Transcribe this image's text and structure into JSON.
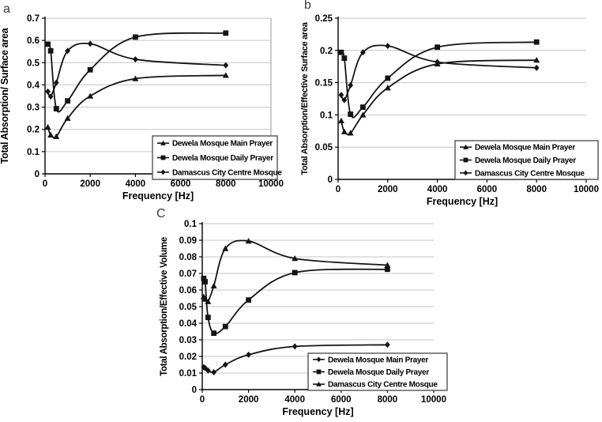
{
  "figure": {
    "background": "#ffffff",
    "panel_labels": {
      "a": "a",
      "b": "b",
      "c": "C"
    },
    "line_color": "#141414",
    "gridline_color": "#c6c6c6"
  },
  "chart_data": [
    {
      "panel": "a",
      "type": "line",
      "title": "",
      "xlabel": "Frequency [Hz]",
      "ylabel": "Total Absorption/ Surface area",
      "xlim": [
        0,
        10000
      ],
      "ylim": [
        0,
        0.7
      ],
      "xticks": [
        "0",
        "2000",
        "4000",
        "6000",
        "8000",
        "10000"
      ],
      "yticks": [
        "0",
        "0.1",
        "0.2",
        "0.3",
        "0.4",
        "0.5",
        "0.6",
        "0.7"
      ],
      "grid": "horizontal",
      "legend_position": "lower-right-inside",
      "series": [
        {
          "name": "Dewela Mosque Main Prayer",
          "marker": "triangle",
          "x": [
            125,
            250,
            500,
            1000,
            2000,
            4000,
            8000
          ],
          "values": [
            0.21,
            0.175,
            0.168,
            0.25,
            0.35,
            0.428,
            0.443
          ]
        },
        {
          "name": "Dewela Mosque Daily Prayer",
          "marker": "square",
          "x": [
            125,
            250,
            500,
            1000,
            2000,
            4000,
            8000
          ],
          "values": [
            0.583,
            0.553,
            0.293,
            0.328,
            0.468,
            0.615,
            0.633
          ]
        },
        {
          "name": "Damascus City Centre Mosque",
          "marker": "diamond",
          "x": [
            125,
            250,
            500,
            1000,
            2000,
            4000,
            8000
          ],
          "values": [
            0.37,
            0.348,
            0.41,
            0.553,
            0.585,
            0.515,
            0.488
          ]
        }
      ]
    },
    {
      "panel": "b",
      "type": "line",
      "title": "",
      "xlabel": "Frequency [Hz]",
      "ylabel": "Total Absorption/Effective Surface area",
      "xlim": [
        0,
        10000
      ],
      "ylim": [
        0,
        0.25
      ],
      "xticks": [
        "0",
        "2000",
        "4000",
        "6000",
        "8000",
        "10000"
      ],
      "yticks": [
        "0",
        "0.05",
        "0.1",
        "0.15",
        "0.2",
        "0.25"
      ],
      "grid": "horizontal",
      "legend_position": "lower-right-inside",
      "series": [
        {
          "name": "Dewela Mosque Main Prayer",
          "marker": "triangle",
          "x": [
            125,
            250,
            500,
            1000,
            2000,
            4000,
            8000
          ],
          "values": [
            0.091,
            0.074,
            0.072,
            0.1,
            0.142,
            0.179,
            0.185
          ]
        },
        {
          "name": "Dewela Mosque Daily Prayer",
          "marker": "square",
          "x": [
            125,
            250,
            500,
            1000,
            2000,
            4000,
            8000
          ],
          "values": [
            0.197,
            0.188,
            0.101,
            0.112,
            0.157,
            0.205,
            0.213
          ]
        },
        {
          "name": "Damascus City Centre Mosque",
          "marker": "diamond",
          "x": [
            125,
            250,
            500,
            1000,
            2000,
            4000,
            8000
          ],
          "values": [
            0.131,
            0.123,
            0.146,
            0.197,
            0.207,
            0.182,
            0.173
          ]
        }
      ]
    },
    {
      "panel": "c",
      "type": "line",
      "title": "",
      "xlabel": "Frequency [Hz]",
      "ylabel": "Total Absorption/Effective Volume",
      "xlim": [
        0,
        10000
      ],
      "ylim": [
        0,
        0.1
      ],
      "xticks": [
        "0",
        "2000",
        "4000",
        "6000",
        "8000",
        "10000"
      ],
      "yticks": [
        "0",
        "0.01",
        "0.02",
        "0.03",
        "0.04",
        "0.05",
        "0.06",
        "0.07",
        "0.08",
        "0.09",
        "0.1"
      ],
      "grid": "horizontal",
      "legend_position": "lower-right-inside",
      "series": [
        {
          "name": "Dewela Mosque Main Prayer",
          "marker": "diamond",
          "x": [
            63,
            125,
            250,
            500,
            1000,
            2000,
            4000,
            8000
          ],
          "values": [
            0.0135,
            0.013,
            0.0115,
            0.0105,
            0.015,
            0.021,
            0.026,
            0.027
          ]
        },
        {
          "name": "Dewela Mosque Daily Prayer",
          "marker": "square",
          "x": [
            63,
            125,
            250,
            500,
            1000,
            2000,
            4000,
            8000
          ],
          "values": [
            0.067,
            0.065,
            0.0435,
            0.034,
            0.038,
            0.054,
            0.0705,
            0.0725
          ]
        },
        {
          "name": "Damascus City Centre Mosque",
          "marker": "triangle",
          "x": [
            63,
            125,
            250,
            500,
            1000,
            2000,
            4000,
            8000
          ],
          "values": [
            0.056,
            0.0545,
            0.053,
            0.0625,
            0.085,
            0.0895,
            0.079,
            0.075
          ]
        }
      ]
    }
  ]
}
